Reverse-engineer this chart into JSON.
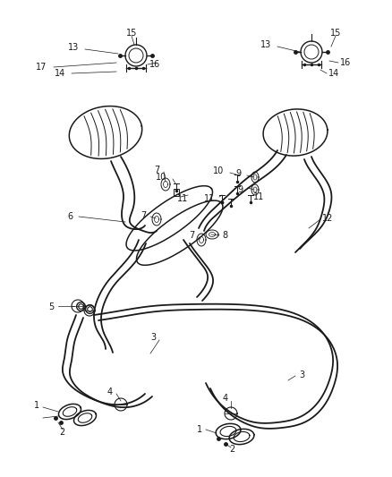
{
  "bg_color": "#ffffff",
  "line_color": "#1a1a1a",
  "fig_width": 4.38,
  "fig_height": 5.33,
  "dpi": 100,
  "font_size": 7.0
}
